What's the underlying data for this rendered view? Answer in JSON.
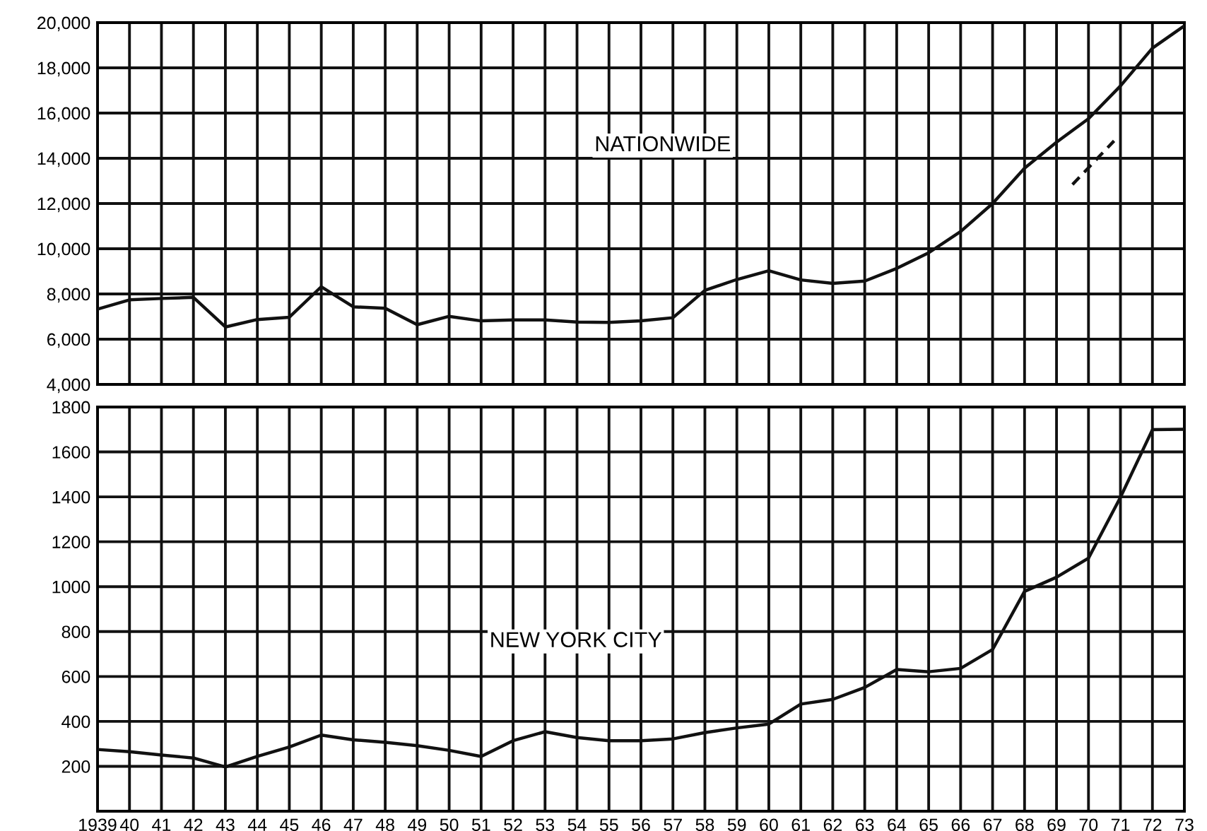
{
  "chart_data": [
    {
      "type": "line",
      "annotations": [
        "NATIONWIDE"
      ],
      "x": [
        1939,
        1940,
        1941,
        1942,
        1943,
        1944,
        1945,
        1946,
        1947,
        1948,
        1949,
        1950,
        1951,
        1952,
        1953,
        1954,
        1955,
        1956,
        1957,
        1958,
        1959,
        1960,
        1961,
        1962,
        1963,
        1964,
        1965,
        1966,
        1967,
        1968,
        1969,
        1970,
        1971,
        1972,
        1973
      ],
      "series": [
        {
          "color": "#111111",
          "values": [
            7330,
            7740,
            7800,
            7850,
            6540,
            6870,
            6970,
            8320,
            7430,
            7370,
            6640,
            7010,
            6810,
            6850,
            6850,
            6760,
            6740,
            6810,
            6950,
            8160,
            8640,
            9030,
            8620,
            8470,
            8570,
            9130,
            9820,
            10760,
            12000,
            13560,
            14710,
            15750,
            17200,
            18870,
            19860
          ]
        },
        {
          "color": "#111111",
          "x": [
            1969.5,
            1970.8
          ],
          "values": [
            12840,
            14770
          ],
          "line_style": "dashed"
        }
      ],
      "xlim": [
        1939,
        1973
      ],
      "xticks": [
        {
          "value": 1939,
          "label": null
        },
        {
          "value": 1940,
          "label": null
        },
        {
          "value": 1941,
          "label": null
        },
        {
          "value": 1942,
          "label": null
        },
        {
          "value": 1943,
          "label": null
        },
        {
          "value": 1944,
          "label": null
        },
        {
          "value": 1945,
          "label": null
        },
        {
          "value": 1946,
          "label": null
        },
        {
          "value": 1947,
          "label": null
        },
        {
          "value": 1948,
          "label": null
        },
        {
          "value": 1949,
          "label": null
        },
        {
          "value": 1950,
          "label": null
        },
        {
          "value": 1951,
          "label": null
        },
        {
          "value": 1952,
          "label": null
        },
        {
          "value": 1953,
          "label": null
        },
        {
          "value": 1954,
          "label": null
        },
        {
          "value": 1955,
          "label": null
        },
        {
          "value": 1956,
          "label": null
        },
        {
          "value": 1957,
          "label": null
        },
        {
          "value": 1958,
          "label": null
        },
        {
          "value": 1959,
          "label": null
        },
        {
          "value": 1960,
          "label": null
        },
        {
          "value": 1961,
          "label": null
        },
        {
          "value": 1962,
          "label": null
        },
        {
          "value": 1963,
          "label": null
        },
        {
          "value": 1964,
          "label": null
        },
        {
          "value": 1965,
          "label": null
        },
        {
          "value": 1966,
          "label": null
        },
        {
          "value": 1967,
          "label": null
        },
        {
          "value": 1968,
          "label": null
        },
        {
          "value": 1969,
          "label": null
        },
        {
          "value": 1970,
          "label": null
        },
        {
          "value": 1971,
          "label": null
        },
        {
          "value": 1972,
          "label": null
        },
        {
          "value": 1973,
          "label": null
        }
      ],
      "ylim": [
        4000,
        20000
      ],
      "yticks": [
        {
          "value": 4000,
          "label": "4,000"
        },
        {
          "value": 6000,
          "label": "6,000"
        },
        {
          "value": 8000,
          "label": "8,000"
        },
        {
          "value": 10000,
          "label": "10,000"
        },
        {
          "value": 12000,
          "label": "12,000"
        },
        {
          "value": 14000,
          "label": "14,000"
        },
        {
          "value": 16000,
          "label": "16,000"
        },
        {
          "value": 18000,
          "label": "18,000"
        },
        {
          "value": 20000,
          "label": "20,000"
        }
      ],
      "grid": true,
      "tick_labels": "y"
    },
    {
      "type": "line",
      "annotations": [
        "NEW YORK CITY"
      ],
      "x": [
        1939,
        1940,
        1941,
        1942,
        1943,
        1944,
        1945,
        1946,
        1947,
        1948,
        1949,
        1950,
        1951,
        1952,
        1953,
        1954,
        1955,
        1956,
        1957,
        1958,
        1959,
        1960,
        1961,
        1962,
        1963,
        1964,
        1965,
        1966,
        1967,
        1968,
        1969,
        1970,
        1971,
        1972,
        1973
      ],
      "series": [
        {
          "color": "#111111",
          "values": [
            275,
            265,
            250,
            237,
            197,
            244,
            286,
            339,
            318,
            307,
            292,
            271,
            244,
            314,
            354,
            328,
            314,
            314,
            322,
            350,
            371,
            388,
            477,
            498,
            551,
            631,
            621,
            636,
            720,
            979,
            1042,
            1127,
            1398,
            1699,
            1701
          ]
        }
      ],
      "xlim": [
        1939,
        1973
      ],
      "xticks": [
        1939,
        {
          "value": 1940,
          "label": "40"
        },
        {
          "value": 1941,
          "label": "41"
        },
        {
          "value": 1942,
          "label": "42"
        },
        {
          "value": 1943,
          "label": "43"
        },
        {
          "value": 1944,
          "label": "44"
        },
        {
          "value": 1945,
          "label": "45"
        },
        {
          "value": 1946,
          "label": "46"
        },
        {
          "value": 1947,
          "label": "47"
        },
        {
          "value": 1948,
          "label": "48"
        },
        {
          "value": 1949,
          "label": "49"
        },
        {
          "value": 1950,
          "label": "50"
        },
        {
          "value": 1951,
          "label": "51"
        },
        {
          "value": 1952,
          "label": "52"
        },
        {
          "value": 1953,
          "label": "53"
        },
        {
          "value": 1954,
          "label": "54"
        },
        {
          "value": 1955,
          "label": "55"
        },
        {
          "value": 1956,
          "label": "56"
        },
        {
          "value": 1957,
          "label": "57"
        },
        {
          "value": 1958,
          "label": "58"
        },
        {
          "value": 1959,
          "label": "59"
        },
        {
          "value": 1960,
          "label": "60"
        },
        {
          "value": 1961,
          "label": "61"
        },
        {
          "value": 1962,
          "label": "62"
        },
        {
          "value": 1963,
          "label": "63"
        },
        {
          "value": 1964,
          "label": "64"
        },
        {
          "value": 1965,
          "label": "65"
        },
        {
          "value": 1966,
          "label": "66"
        },
        {
          "value": 1967,
          "label": "67"
        },
        {
          "value": 1968,
          "label": "68"
        },
        {
          "value": 1969,
          "label": "69"
        },
        {
          "value": 1970,
          "label": "70"
        },
        {
          "value": 1971,
          "label": "71"
        },
        {
          "value": 1972,
          "label": "72"
        },
        {
          "value": 1973,
          "label": "73"
        }
      ],
      "ylim": [
        0,
        1800
      ],
      "yticks": [
        {
          "value": 0,
          "label": null
        },
        200,
        400,
        600,
        800,
        1000,
        1200,
        1400,
        1600,
        1800
      ],
      "grid": true
    }
  ]
}
